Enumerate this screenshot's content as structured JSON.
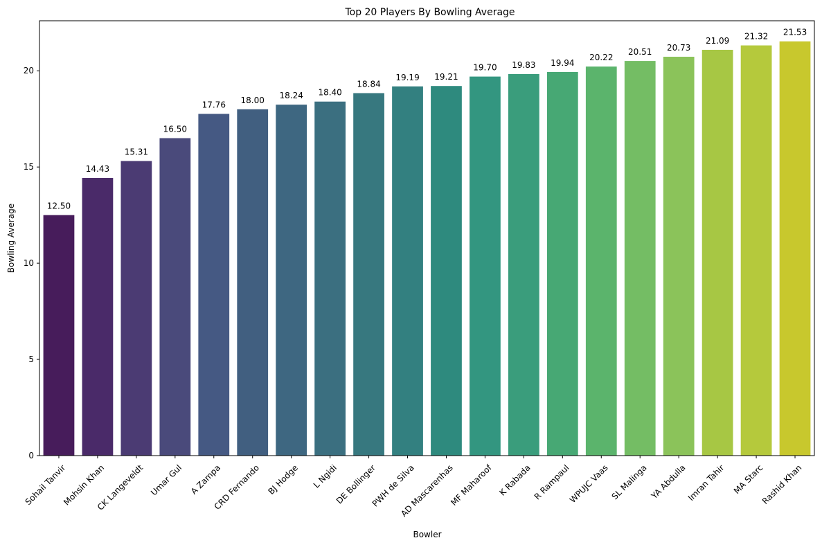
{
  "chart_data": {
    "type": "bar",
    "title": "Top 20 Players By Bowling Average",
    "xlabel": "Bowler",
    "ylabel": "Bowling Average",
    "categories": [
      "Sohail Tanvir",
      "Mohsin Khan",
      "CK Langeveldt",
      "Umar Gul",
      "A Zampa",
      "CRD Fernando",
      "BJ Hodge",
      "L Ngidi",
      "DE Bollinger",
      "PWH de Silva",
      "AD Mascarenhas",
      "MF Maharoof",
      "K Rabada",
      "R Rampaul",
      "WPUJC Vaas",
      "SL Malinga",
      "YA Abdulla",
      "Imran Tahir",
      "MA Starc",
      "Rashid Khan"
    ],
    "values": [
      12.5,
      14.43,
      15.31,
      16.5,
      17.76,
      18.0,
      18.24,
      18.4,
      18.84,
      19.19,
      19.21,
      19.7,
      19.83,
      19.94,
      20.22,
      20.51,
      20.73,
      21.09,
      21.32,
      21.53
    ],
    "value_labels": [
      "12.50",
      "14.43",
      "15.31",
      "16.50",
      "17.76",
      "18.00",
      "18.24",
      "18.40",
      "18.84",
      "19.19",
      "19.21",
      "19.70",
      "19.83",
      "19.94",
      "20.22",
      "20.51",
      "20.73",
      "21.09",
      "21.32",
      "21.53"
    ],
    "colors": [
      "#471c5b",
      "#4a2a69",
      "#4b3b73",
      "#4a4a7b",
      "#455983",
      "#415f80",
      "#3e6781",
      "#3b6f80",
      "#37787f",
      "#338080",
      "#2e8a7e",
      "#339680",
      "#3a9d7c",
      "#47a874",
      "#5bb46c",
      "#74bd64",
      "#8bc35a",
      "#a7c744",
      "#b5c93c",
      "#c8c82d"
    ],
    "yticks": [
      "0",
      "5",
      "10",
      "15",
      "20"
    ],
    "ytick_values": [
      0,
      5,
      10,
      15,
      20
    ],
    "ylim": [
      0,
      22.6
    ],
    "grid": false,
    "legend": "none"
  }
}
